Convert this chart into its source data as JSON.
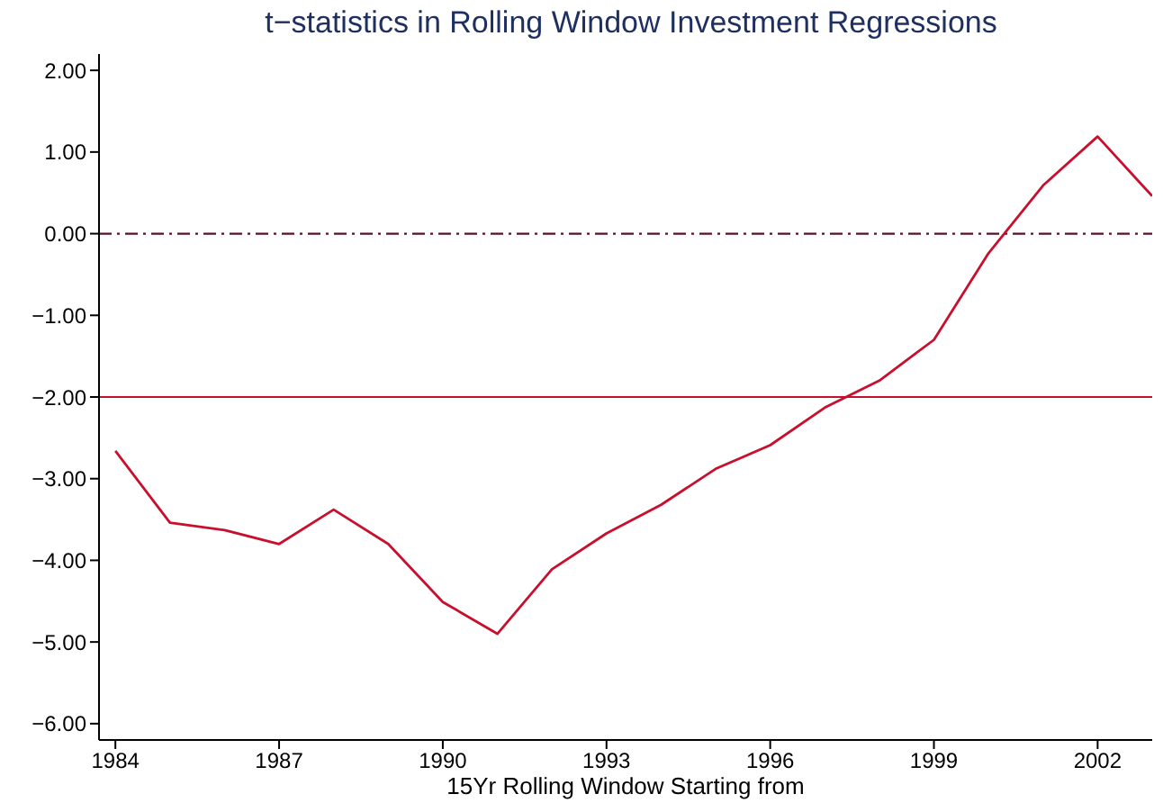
{
  "chart_data": {
    "type": "line",
    "title": "t−statistics in Rolling Window Investment Regressions",
    "xlabel": "15Yr Rolling Window Starting from",
    "x": [
      1984,
      1985,
      1986,
      1987,
      1988,
      1989,
      1990,
      1991,
      1992,
      1993,
      1994,
      1995,
      1996,
      1997,
      1998,
      1999,
      2000,
      2001,
      2002,
      2003
    ],
    "series": [
      {
        "color": "#c8102e",
        "values": [
          -2.66,
          -3.54,
          -3.63,
          -3.8,
          -3.38,
          -3.8,
          -4.51,
          -4.9,
          -4.11,
          -3.67,
          -3.32,
          -2.88,
          -2.59,
          -2.13,
          -1.8,
          -1.3,
          -0.24,
          0.59,
          1.19,
          0.46
        ]
      }
    ],
    "xlim": [
      1983.7,
      2003
    ],
    "xticks": [
      1984,
      1987,
      1990,
      1993,
      1996,
      1999,
      2002
    ],
    "ylim": [
      -6.2,
      2.2
    ],
    "yticks": [
      {
        "value": -6,
        "label": "−6.00"
      },
      {
        "value": -5,
        "label": "−5.00"
      },
      {
        "value": -4,
        "label": "−4.00"
      },
      {
        "value": -3,
        "label": "−3.00"
      },
      {
        "value": -2,
        "label": "−2.00"
      },
      {
        "value": -1,
        "label": "−1.00"
      },
      {
        "value": 0,
        "label": "0.00"
      },
      {
        "value": 1,
        "label": "1.00"
      },
      {
        "value": 2,
        "label": "2.00"
      }
    ],
    "ref_lines": [
      {
        "axis": "y",
        "value": 0,
        "color": "#5a1028",
        "line_style": "dashed"
      },
      {
        "axis": "y",
        "value": -2,
        "color": "#c8102e",
        "line_style": "solid"
      }
    ],
    "grid": false,
    "marker": "none",
    "line_style": "solid"
  }
}
